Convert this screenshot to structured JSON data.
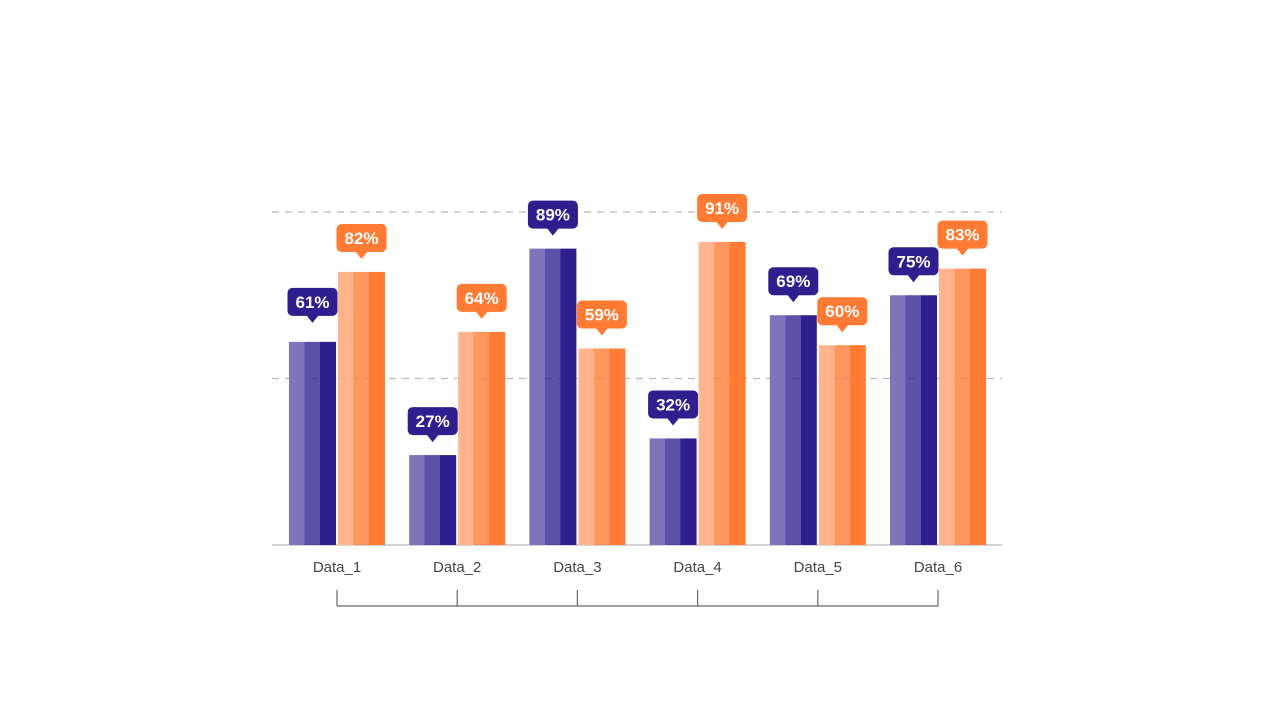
{
  "chart_data": {
    "type": "bar",
    "categories": [
      "Data_1",
      "Data_2",
      "Data_3",
      "Data_4",
      "Data_5",
      "Data_6"
    ],
    "series": [
      {
        "values": [
          61,
          27,
          89,
          32,
          69,
          75
        ],
        "color": "#2E1E8E",
        "color_light": "#7F73BC"
      },
      {
        "values": [
          82,
          64,
          59,
          91,
          60,
          83
        ],
        "color": "#FF7A32",
        "color_light": "#FFB48C"
      }
    ],
    "data_labels": [
      [
        "61%",
        "27%",
        "89%",
        "32%",
        "69%",
        "75%"
      ],
      [
        "82%",
        "64%",
        "59%",
        "91%",
        "60%",
        "83%"
      ]
    ],
    "ylim": [
      0,
      100
    ],
    "grid": "dashed horizontal",
    "legend": "none",
    "label_color": "#444444",
    "grid_color": "#BBBBBB"
  }
}
